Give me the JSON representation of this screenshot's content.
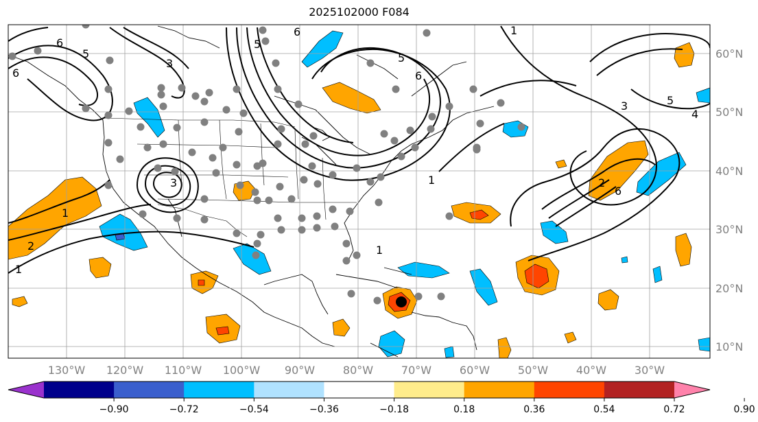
{
  "title": "2025102000 F084",
  "map": {
    "lon_range": [
      -140,
      -15
    ],
    "lat_range": [
      8,
      65
    ],
    "lon_labels": [
      "130°W",
      "120°W",
      "110°W",
      "100°W",
      "90°W",
      "80°W",
      "70°W",
      "60°W",
      "50°W",
      "40°W",
      "30°W"
    ],
    "lat_labels": [
      "60°N",
      "50°N",
      "40°N",
      "30°N",
      "20°N",
      "10°N"
    ],
    "contour_labels": [
      "6",
      "5",
      "3",
      "6",
      "5",
      "6",
      "5",
      "6",
      "3",
      "5",
      "4",
      "1",
      "2",
      "1",
      "1",
      "1",
      "3",
      "2",
      "6",
      "1"
    ],
    "grid": true,
    "contour_color": "#000000",
    "station_marker_color": "#808080"
  },
  "colorbar": {
    "tick_labels": [
      "−0.90",
      "−0.72",
      "−0.54",
      "−0.36",
      "−0.18",
      "0.18",
      "0.36",
      "0.54",
      "0.72",
      "0.90"
    ],
    "colors": [
      "#9a32cd",
      "#00008b",
      "#3a5fcd",
      "#00bfff",
      "#b0e2ff",
      "#ffffff",
      "#ffec8b",
      "#ffa500",
      "#ff4500",
      "#b22222",
      "#ff82ab"
    ]
  }
}
